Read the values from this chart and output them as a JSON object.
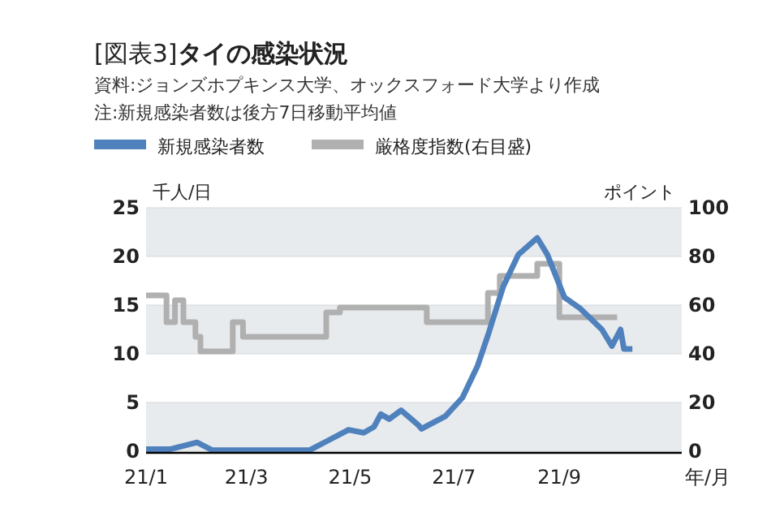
{
  "chart_data": {
    "type": "line",
    "title": "[図表3]**タイの感染状況**",
    "annotations": [
      "資料:ジョンズホプキンス大学、オックスフォード大学より作成",
      "注:新規感染者数は後方7日移動平均値"
    ],
    "xlabel": "年/月",
    "ylabel": "千人/日",
    "y2label": "ポイント",
    "legend": "top left",
    "grid": "y",
    "marker": "none",
    "line_style": "solid",
    "xlim": [
      "--01-01",
      "--11-12"
    ],
    "xticks": [
      {
        "value": "--01-01",
        "label": "21/1"
      },
      {
        "value": "--03-01",
        "label": "21/3"
      },
      {
        "value": "--05-01",
        "label": "21/5"
      },
      {
        "value": "--07-01",
        "label": "21/7"
      },
      {
        "value": "--09-01",
        "label": "21/9"
      }
    ],
    "ylim": [
      0,
      25
    ],
    "yticks": [
      0,
      5,
      10,
      15,
      20,
      25
    ],
    "y2lim": [
      0,
      100
    ],
    "y2ticks": [
      0,
      20,
      40,
      60,
      80,
      100
    ],
    "series": [
      {
        "name": "新規感染者数",
        "color": "#4f81bd",
        "x": [
          "--01-01",
          "--01-15",
          "--01-31",
          "--02-09",
          "--04-07",
          "--04-17",
          "--04-30",
          "--05-09",
          "--05-15",
          "--05-19",
          "--05-24",
          "--05-31",
          "--06-10",
          "--06-12",
          "--06-26",
          "--07-06",
          "--07-15",
          "--07-21",
          "--07-30",
          "--08-08",
          "--08-19",
          "--08-25",
          "--09-04",
          "--09-13",
          "--09-26",
          "--10-02",
          "--10-07",
          "--10-09",
          "--10-14"
        ],
        "values": [
          0.2,
          0.2,
          0.9,
          0.1,
          0.1,
          1.0,
          2.2,
          1.9,
          2.5,
          3.8,
          3.3,
          4.2,
          2.7,
          2.3,
          3.6,
          5.5,
          8.8,
          11.9,
          16.9,
          20.2,
          21.9,
          20.2,
          15.8,
          14.7,
          12.5,
          10.8,
          12.5,
          10.5,
          10.5
        ]
      },
      {
        "name": "厳格度指数(右目盛)",
        "color": "#b0b0b0",
        "type": "step",
        "axis": "y2",
        "x": [
          "--01-01",
          "--01-13",
          "--01-18",
          "--01-23",
          "--01-30",
          "--02-02",
          "--02-21",
          "--02-27",
          "--04-17",
          "--04-25",
          "--06-15",
          "--07-21",
          "--07-28",
          "--08-19",
          "--09-01",
          "--10-05"
        ],
        "values": [
          64,
          53,
          62,
          53,
          47,
          41,
          53,
          47,
          57,
          59,
          53,
          65,
          72,
          77,
          55,
          55
        ]
      }
    ]
  }
}
